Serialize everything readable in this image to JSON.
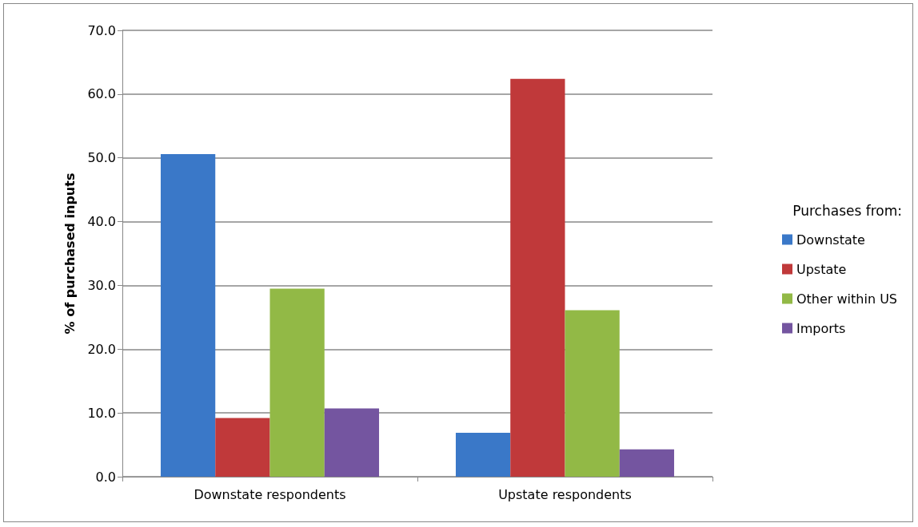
{
  "chart_data": {
    "type": "bar",
    "ylabel": "% of purchased inputs",
    "legend_title": "Purchases from:",
    "categories": [
      "Downstate respondents",
      "Upstate respondents"
    ],
    "series": [
      {
        "name": "Downstate",
        "color": "#3a78c8",
        "values": [
          50.6,
          6.9
        ]
      },
      {
        "name": "Upstate",
        "color": "#c0393a",
        "values": [
          9.2,
          62.4
        ]
      },
      {
        "name": "Other within US",
        "color": "#92b946",
        "values": [
          29.5,
          26.1
        ]
      },
      {
        "name": "Imports",
        "color": "#7455a0",
        "values": [
          10.7,
          4.3
        ]
      }
    ],
    "ylim": [
      0,
      70
    ],
    "yticks": [
      {
        "value": 0,
        "label": "0.0"
      },
      {
        "value": 10,
        "label": "10.0"
      },
      {
        "value": 20,
        "label": "20.0"
      },
      {
        "value": 30,
        "label": "30.0"
      },
      {
        "value": 40,
        "label": "40.0"
      },
      {
        "value": 50,
        "label": "50.0"
      },
      {
        "value": 60,
        "label": "60.0"
      },
      {
        "value": 70,
        "label": "70.0"
      }
    ],
    "grid": "y",
    "legend": "right"
  }
}
